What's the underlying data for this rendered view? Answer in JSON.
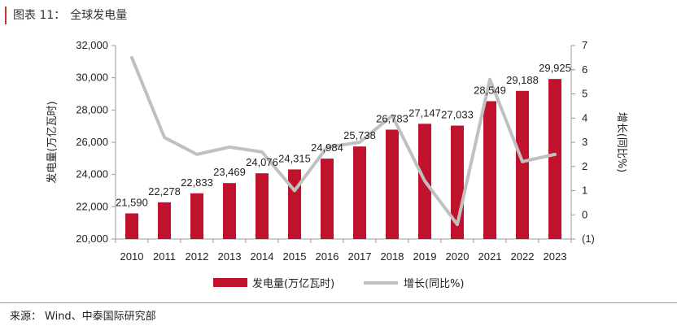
{
  "title": {
    "label": "图表 11：",
    "text": "全球发电量"
  },
  "source": {
    "prefix": "来源：",
    "text": "Wind、中泰国际研究部"
  },
  "colors": {
    "bar": "#c0122c",
    "line": "#c0c0c0",
    "negative_tick": "#d01010",
    "accent": "#c0392b"
  },
  "chart_data": {
    "type": "bar",
    "categories": [
      "2010",
      "2011",
      "2012",
      "2013",
      "2014",
      "2015",
      "2016",
      "2017",
      "2018",
      "2019",
      "2020",
      "2021",
      "2022",
      "2023"
    ],
    "series": [
      {
        "name": "发电量(万亿瓦时)",
        "type": "bar",
        "axis": "left",
        "values": [
          21590,
          22278,
          22833,
          23469,
          24076,
          24315,
          24984,
          25738,
          26783,
          27147,
          27033,
          28549,
          29188,
          29925
        ],
        "labels": [
          "21,590",
          "22,278",
          "22,833",
          "23,469",
          "24,076",
          "24,315",
          "24,984",
          "25,738",
          "26,783",
          "27,147",
          "27,033",
          "28,549",
          "29,188",
          "29,925"
        ]
      },
      {
        "name": "增长(同比%)",
        "type": "line",
        "axis": "right",
        "values": [
          6.5,
          3.2,
          2.5,
          2.8,
          2.6,
          1.0,
          2.8,
          3.0,
          4.1,
          1.4,
          -0.4,
          5.6,
          2.2,
          2.5
        ]
      }
    ],
    "ylabel": "发电量(万亿瓦时)",
    "y2label": "增长(同比%)",
    "ylim": [
      20000,
      32000
    ],
    "yticks": [
      "20,000",
      "22,000",
      "24,000",
      "26,000",
      "28,000",
      "30,000",
      "32,000"
    ],
    "ytick_values": [
      20000,
      22000,
      24000,
      26000,
      28000,
      30000,
      32000
    ],
    "y2lim": [
      -1,
      7
    ],
    "y2ticks": [
      "(1)",
      "0",
      "1",
      "2",
      "3",
      "4",
      "5",
      "6",
      "7"
    ],
    "y2tick_values": [
      -1,
      0,
      1,
      2,
      3,
      4,
      5,
      6,
      7
    ],
    "legend": "bottom",
    "grid": false
  }
}
